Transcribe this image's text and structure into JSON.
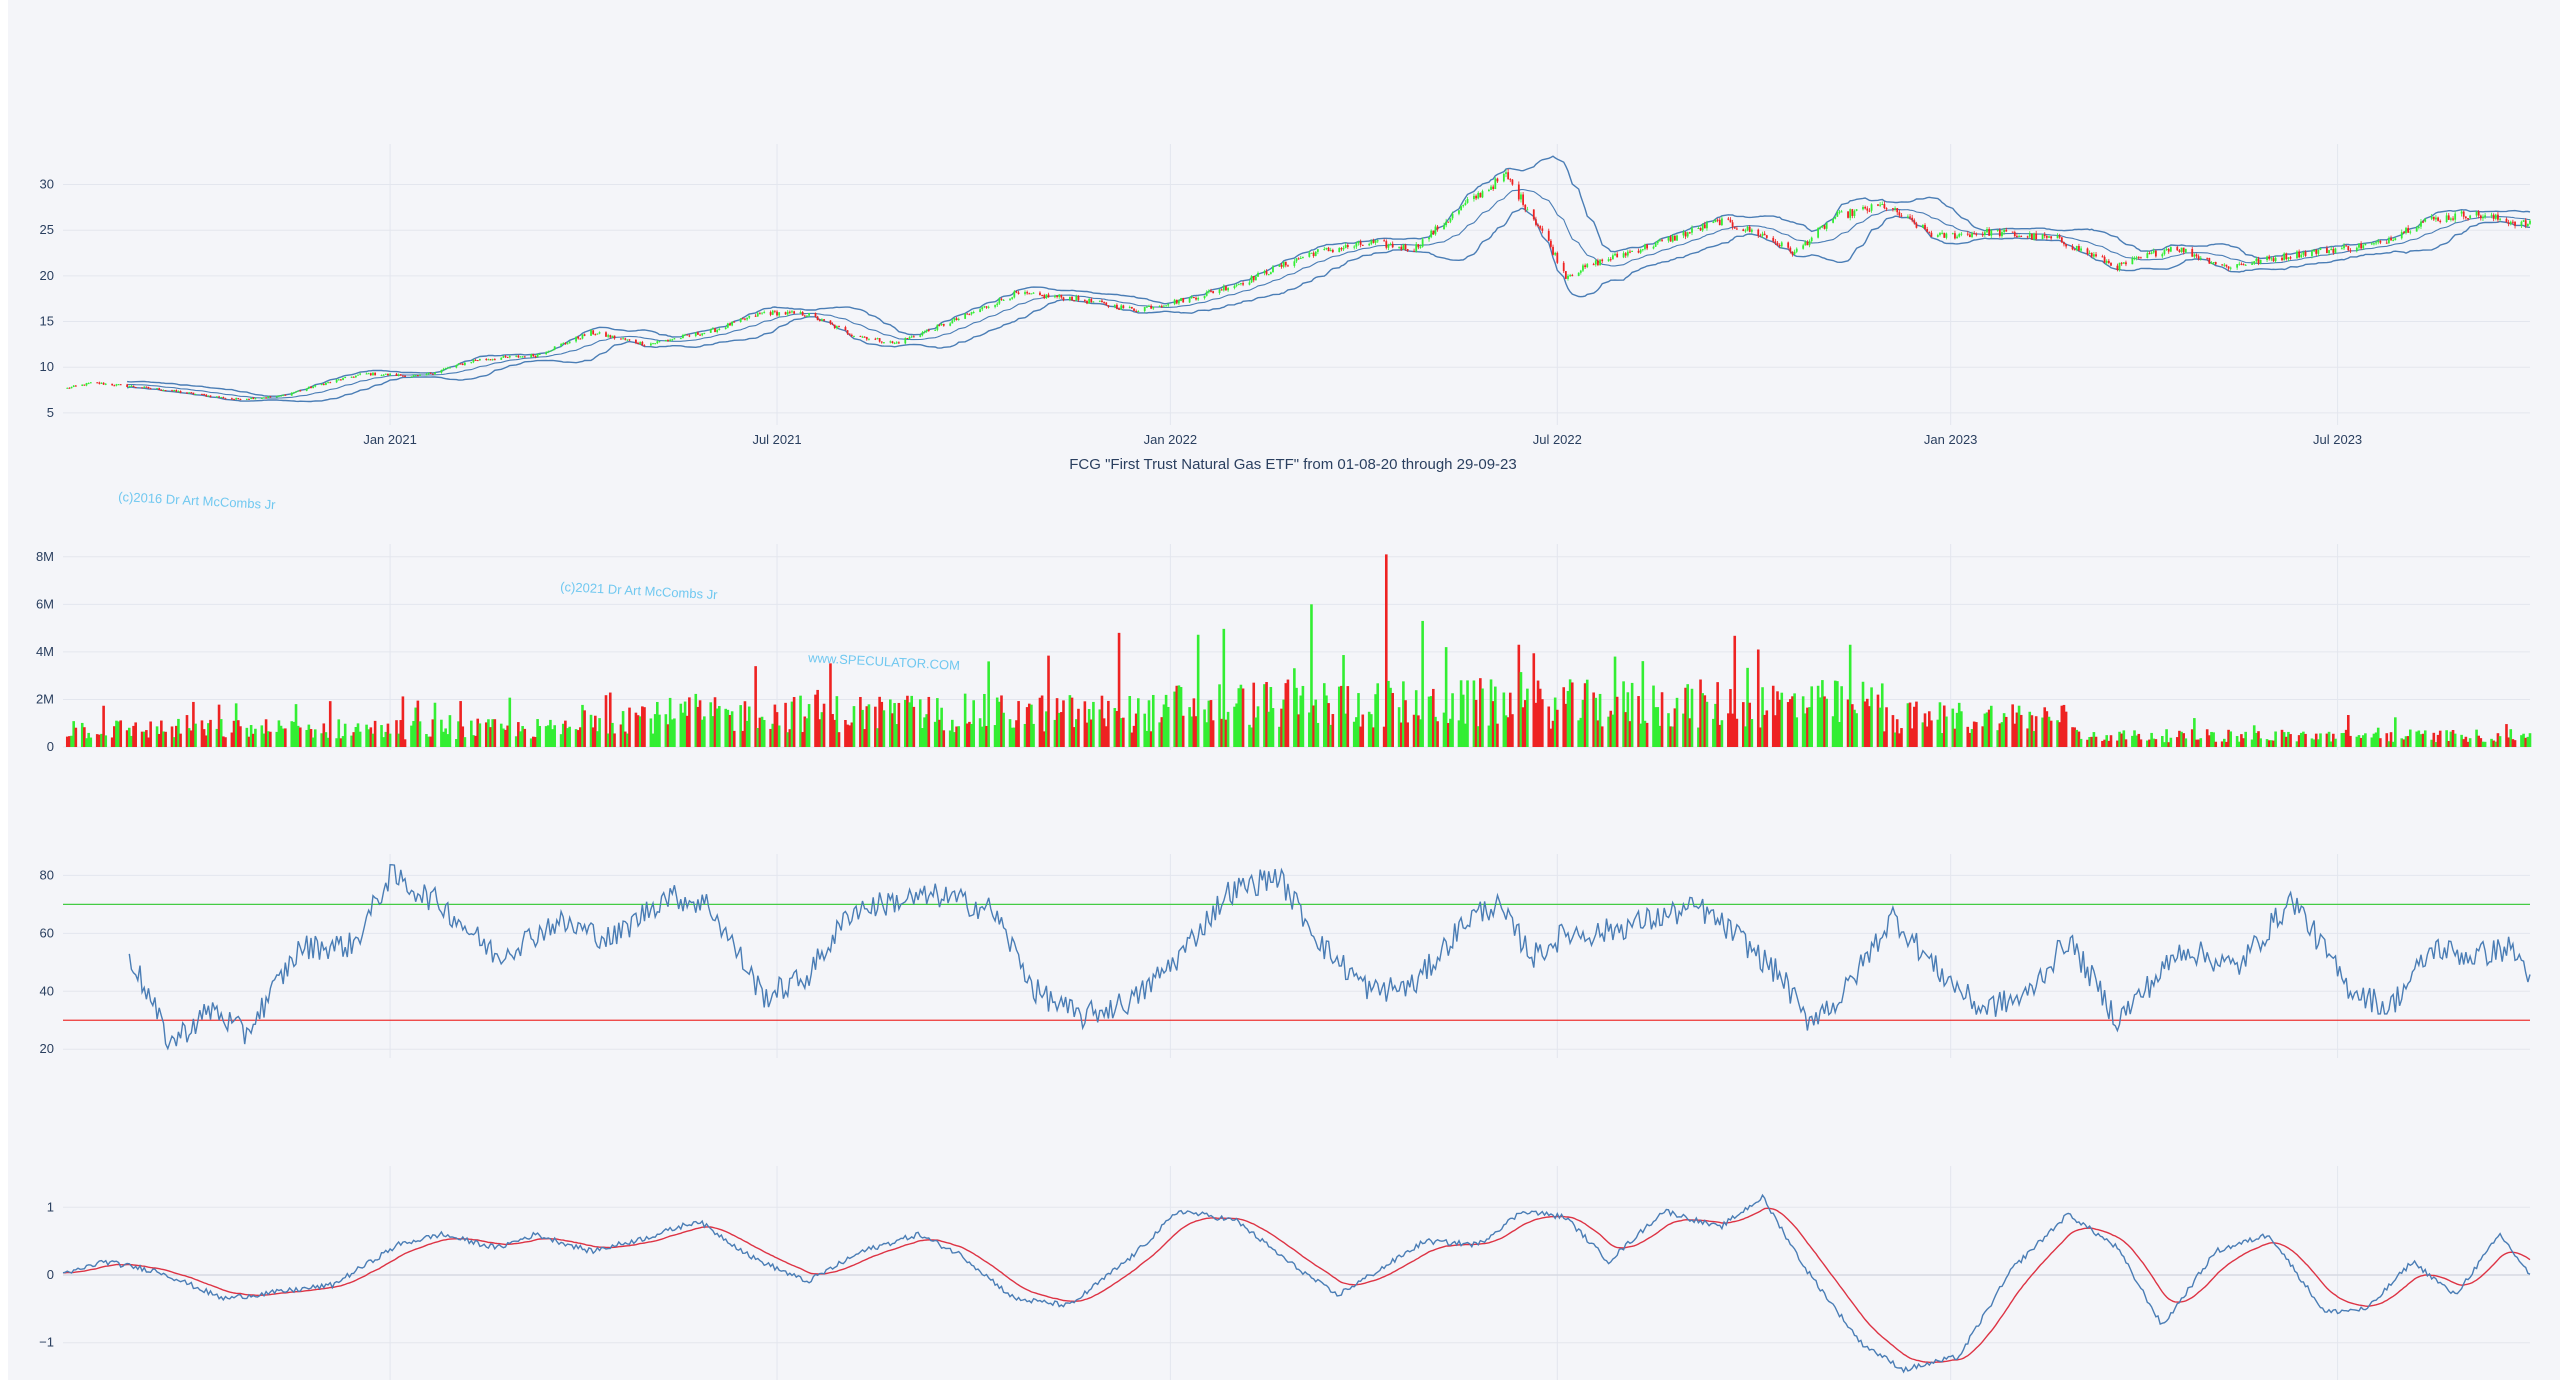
{
  "title": "FCG \"First Trust Natural Gas ETF\" from 01-08-20 through 29-09-23",
  "watermarks": [
    "(c)2016 Dr Art McCombs Jr",
    "(c)2021 Dr Art McCombs Jr",
    "www.SPECULATOR.COM"
  ],
  "colors": {
    "up": "#33ee33",
    "down": "#ee2222",
    "band": "#4a7db5",
    "macd_signal": "#dd3344",
    "rsi_overbought_line": "#44cc44",
    "rsi_oversold_line": "#ee3333"
  },
  "chart_data": [
    {
      "type": "candlestick",
      "name": "price",
      "overlays": [
        "bollinger_upper",
        "bollinger_middle",
        "bollinger_lower"
      ],
      "date_range": [
        "2020-08-01",
        "2023-09-29"
      ],
      "x_ticks": [
        "Jan 2021",
        "Jul 2021",
        "Jan 2022",
        "Jul 2022",
        "Jan 2023",
        "Jul 2023"
      ],
      "y_ticks": [
        5,
        10,
        15,
        20,
        25,
        30
      ],
      "ylim": [
        4,
        34
      ],
      "close_path": [
        [
          "2020-08-01",
          7.6
        ],
        [
          "2020-08-15",
          8.3
        ],
        [
          "2020-09-15",
          7.6
        ],
        [
          "2020-10-20",
          6.5
        ],
        [
          "2020-11-10",
          6.8
        ],
        [
          "2020-12-01",
          8.2
        ],
        [
          "2020-12-20",
          9.3
        ],
        [
          "2021-01-15",
          9.0
        ],
        [
          "2021-02-10",
          10.8
        ],
        [
          "2021-03-10",
          11.3
        ],
        [
          "2021-04-05",
          13.8
        ],
        [
          "2021-05-01",
          12.5
        ],
        [
          "2021-06-01",
          14.0
        ],
        [
          "2021-06-25",
          16.0
        ],
        [
          "2021-07-15",
          15.8
        ],
        [
          "2021-08-05",
          13.6
        ],
        [
          "2021-08-25",
          12.6
        ],
        [
          "2021-09-25",
          15.4
        ],
        [
          "2021-10-20",
          18.0
        ],
        [
          "2021-11-15",
          17.6
        ],
        [
          "2021-12-15",
          16.3
        ],
        [
          "2022-01-10",
          17.5
        ],
        [
          "2022-02-05",
          19.4
        ],
        [
          "2022-03-08",
          22.5
        ],
        [
          "2022-04-05",
          23.6
        ],
        [
          "2022-04-25",
          23.0
        ],
        [
          "2022-05-20",
          28.0
        ],
        [
          "2022-06-07",
          31.0
        ],
        [
          "2022-06-25",
          24.5
        ],
        [
          "2022-07-05",
          20.0
        ],
        [
          "2022-07-20",
          21.5
        ],
        [
          "2022-08-25",
          24.2
        ],
        [
          "2022-09-15",
          26.0
        ],
        [
          "2022-10-05",
          24.5
        ],
        [
          "2022-10-20",
          22.5
        ],
        [
          "2022-11-08",
          26.5
        ],
        [
          "2022-12-01",
          27.7
        ],
        [
          "2022-12-25",
          24.3
        ],
        [
          "2023-01-20",
          24.8
        ],
        [
          "2023-02-20",
          24.0
        ],
        [
          "2023-03-20",
          21.0
        ],
        [
          "2023-04-15",
          23.2
        ],
        [
          "2023-05-10",
          21.0
        ],
        [
          "2023-06-15",
          22.5
        ],
        [
          "2023-07-20",
          23.5
        ],
        [
          "2023-08-10",
          26.0
        ],
        [
          "2023-09-01",
          26.8
        ],
        [
          "2023-09-29",
          25.6
        ]
      ]
    },
    {
      "type": "bar",
      "name": "volume",
      "date_range": [
        "2020-08-01",
        "2023-09-29"
      ],
      "y_ticks": [
        "0",
        "2M",
        "4M",
        "6M",
        "8M"
      ],
      "ylim": [
        0,
        8200000
      ],
      "notable_spikes": [
        [
          "2022-03-08",
          6000000
        ],
        [
          "2022-04-12",
          8100000
        ],
        [
          "2022-05-10",
          4200000
        ],
        [
          "2022-06-13",
          4300000
        ],
        [
          "2021-12-08",
          4800000
        ],
        [
          "2021-06-21",
          3400000
        ],
        [
          "2021-10-08",
          3600000
        ],
        [
          "2022-10-03",
          4100000
        ],
        [
          "2022-11-15",
          4300000
        ]
      ]
    },
    {
      "type": "line",
      "name": "rsi",
      "date_range": [
        "2020-09-01",
        "2023-09-29"
      ],
      "y_ticks": [
        20,
        40,
        60,
        80
      ],
      "ylim": [
        18,
        86
      ],
      "reference_lines": [
        70,
        30
      ],
      "path": [
        [
          "2020-09-01",
          53
        ],
        [
          "2020-09-20",
          22
        ],
        [
          "2020-10-10",
          34
        ],
        [
          "2020-10-25",
          25
        ],
        [
          "2020-11-20",
          55
        ],
        [
          "2020-12-15",
          56
        ],
        [
          "2021-01-01",
          80
        ],
        [
          "2021-01-25",
          70
        ],
        [
          "2021-02-20",
          52
        ],
        [
          "2021-03-20",
          64
        ],
        [
          "2021-04-15",
          58
        ],
        [
          "2021-05-10",
          73
        ],
        [
          "2021-05-30",
          70
        ],
        [
          "2021-06-25",
          38
        ],
        [
          "2021-07-15",
          45
        ],
        [
          "2021-08-05",
          68
        ],
        [
          "2021-08-25",
          71
        ],
        [
          "2021-09-15",
          73
        ],
        [
          "2021-10-10",
          68
        ],
        [
          "2021-10-30",
          40
        ],
        [
          "2021-11-20",
          31
        ],
        [
          "2021-12-15",
          37
        ],
        [
          "2022-01-05",
          52
        ],
        [
          "2022-01-28",
          74
        ],
        [
          "2022-02-20",
          80
        ],
        [
          "2022-03-15",
          54
        ],
        [
          "2022-04-05",
          40
        ],
        [
          "2022-04-25",
          42
        ],
        [
          "2022-05-20",
          65
        ],
        [
          "2022-06-02",
          70
        ],
        [
          "2022-06-20",
          52
        ],
        [
          "2022-07-05",
          60
        ],
        [
          "2022-07-20",
          60
        ],
        [
          "2022-08-15",
          65
        ],
        [
          "2022-09-05",
          69
        ],
        [
          "2022-09-25",
          58
        ],
        [
          "2022-10-15",
          44
        ],
        [
          "2022-10-25",
          30
        ],
        [
          "2022-11-10",
          37
        ],
        [
          "2022-12-05",
          66
        ],
        [
          "2022-12-25",
          48
        ],
        [
          "2023-01-15",
          34
        ],
        [
          "2023-02-05",
          38
        ],
        [
          "2023-02-25",
          58
        ],
        [
          "2023-03-20",
          30
        ],
        [
          "2023-04-05",
          43
        ],
        [
          "2023-04-20",
          55
        ],
        [
          "2023-05-15",
          48
        ],
        [
          "2023-06-10",
          72
        ],
        [
          "2023-07-05",
          42
        ],
        [
          "2023-07-25",
          34
        ],
        [
          "2023-08-15",
          55
        ],
        [
          "2023-09-01",
          52
        ],
        [
          "2023-09-20",
          55
        ],
        [
          "2023-09-29",
          46
        ]
      ]
    },
    {
      "type": "line",
      "name": "macd",
      "series_names": [
        "macd",
        "signal"
      ],
      "date_range": [
        "2020-08-01",
        "2023-09-29"
      ],
      "y_ticks": [
        "1",
        "0",
        "−1"
      ],
      "ylim": [
        -1.55,
        1.55
      ],
      "path": [
        [
          "2020-08-01",
          0.0
        ],
        [
          "2020-08-20",
          0.2
        ],
        [
          "2020-09-15",
          0.05
        ],
        [
          "2020-10-15",
          -0.35
        ],
        [
          "2020-11-10",
          -0.25
        ],
        [
          "2020-12-05",
          -0.15
        ],
        [
          "2021-01-05",
          0.45
        ],
        [
          "2021-01-25",
          0.6
        ],
        [
          "2021-02-20",
          0.4
        ],
        [
          "2021-03-10",
          0.6
        ],
        [
          "2021-04-05",
          0.35
        ],
        [
          "2021-05-01",
          0.55
        ],
        [
          "2021-05-25",
          0.8
        ],
        [
          "2021-06-20",
          0.25
        ],
        [
          "2021-07-15",
          -0.1
        ],
        [
          "2021-08-10",
          0.35
        ],
        [
          "2021-09-05",
          0.6
        ],
        [
          "2021-09-25",
          0.3
        ],
        [
          "2021-10-20",
          -0.35
        ],
        [
          "2021-11-15",
          -0.45
        ],
        [
          "2021-12-15",
          0.3
        ],
        [
          "2022-01-05",
          0.95
        ],
        [
          "2022-02-01",
          0.8
        ],
        [
          "2022-02-25",
          0.2
        ],
        [
          "2022-03-20",
          -0.3
        ],
        [
          "2022-04-10",
          0.1
        ],
        [
          "2022-04-30",
          0.5
        ],
        [
          "2022-05-25",
          0.45
        ],
        [
          "2022-06-15",
          0.95
        ],
        [
          "2022-07-05",
          0.85
        ],
        [
          "2022-07-25",
          0.2
        ],
        [
          "2022-08-20",
          0.95
        ],
        [
          "2022-09-15",
          0.7
        ],
        [
          "2022-10-05",
          1.15
        ],
        [
          "2022-10-25",
          0.1
        ],
        [
          "2022-11-20",
          -1.0
        ],
        [
          "2022-12-10",
          -1.4
        ],
        [
          "2023-01-05",
          -1.2
        ],
        [
          "2023-01-30",
          0.1
        ],
        [
          "2023-02-25",
          0.9
        ],
        [
          "2023-03-20",
          0.4
        ],
        [
          "2023-04-10",
          -0.75
        ],
        [
          "2023-05-05",
          0.35
        ],
        [
          "2023-05-30",
          0.6
        ],
        [
          "2023-06-25",
          -0.55
        ],
        [
          "2023-07-15",
          -0.5
        ],
        [
          "2023-08-05",
          0.2
        ],
        [
          "2023-08-25",
          -0.3
        ],
        [
          "2023-09-15",
          0.6
        ],
        [
          "2023-09-29",
          0.0
        ]
      ]
    }
  ]
}
